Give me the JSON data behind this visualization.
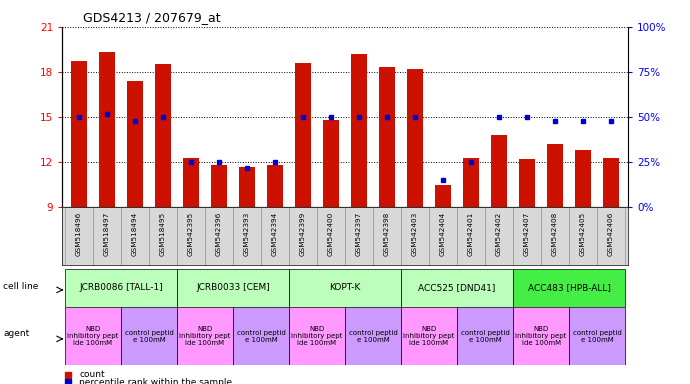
{
  "title": "GDS4213 / 207679_at",
  "samples": [
    "GSM518496",
    "GSM518497",
    "GSM518494",
    "GSM518495",
    "GSM542395",
    "GSM542396",
    "GSM542393",
    "GSM542394",
    "GSM542399",
    "GSM542400",
    "GSM542397",
    "GSM542398",
    "GSM542403",
    "GSM542404",
    "GSM542401",
    "GSM542402",
    "GSM542407",
    "GSM542408",
    "GSM542405",
    "GSM542406"
  ],
  "counts": [
    18.7,
    19.3,
    17.4,
    18.5,
    12.3,
    11.8,
    11.7,
    11.8,
    18.6,
    14.8,
    19.2,
    18.3,
    18.2,
    10.5,
    12.3,
    13.8,
    12.2,
    13.2,
    12.8,
    12.3
  ],
  "percentiles": [
    50,
    52,
    48,
    50,
    25,
    25,
    22,
    25,
    50,
    50,
    50,
    50,
    50,
    15,
    25,
    50,
    50,
    48,
    48,
    48
  ],
  "cell_lines": [
    {
      "label": "JCRB0086 [TALL-1]",
      "start": 0,
      "end": 3,
      "color": "#bbffbb"
    },
    {
      "label": "JCRB0033 [CEM]",
      "start": 4,
      "end": 7,
      "color": "#bbffbb"
    },
    {
      "label": "KOPT-K",
      "start": 8,
      "end": 11,
      "color": "#bbffbb"
    },
    {
      "label": "ACC525 [DND41]",
      "start": 12,
      "end": 15,
      "color": "#bbffbb"
    },
    {
      "label": "ACC483 [HPB-ALL]",
      "start": 16,
      "end": 19,
      "color": "#44ee44"
    }
  ],
  "agents": [
    {
      "label": "NBD\ninhibitory pept\nide 100mM",
      "start": 0,
      "end": 1,
      "color": "#ff99ff"
    },
    {
      "label": "control peptid\ne 100mM",
      "start": 2,
      "end": 3,
      "color": "#cc99ff"
    },
    {
      "label": "NBD\ninhibitory pept\nide 100mM",
      "start": 4,
      "end": 5,
      "color": "#ff99ff"
    },
    {
      "label": "control peptid\ne 100mM",
      "start": 6,
      "end": 7,
      "color": "#cc99ff"
    },
    {
      "label": "NBD\ninhibitory pept\nide 100mM",
      "start": 8,
      "end": 9,
      "color": "#ff99ff"
    },
    {
      "label": "control peptid\ne 100mM",
      "start": 10,
      "end": 11,
      "color": "#cc99ff"
    },
    {
      "label": "NBD\ninhibitory pept\nide 100mM",
      "start": 12,
      "end": 13,
      "color": "#ff99ff"
    },
    {
      "label": "control peptid\ne 100mM",
      "start": 14,
      "end": 15,
      "color": "#cc99ff"
    },
    {
      "label": "NBD\ninhibitory pept\nide 100mM",
      "start": 16,
      "end": 17,
      "color": "#ff99ff"
    },
    {
      "label": "control peptid\ne 100mM",
      "start": 18,
      "end": 19,
      "color": "#cc99ff"
    }
  ],
  "ylim_left": [
    9,
    21
  ],
  "yticks_left": [
    9,
    12,
    15,
    18,
    21
  ],
  "ylim_right": [
    0,
    100
  ],
  "yticks_right": [
    0,
    25,
    50,
    75,
    100
  ],
  "bar_color": "#cc1100",
  "dot_color": "#0000cc",
  "bar_width": 0.55
}
